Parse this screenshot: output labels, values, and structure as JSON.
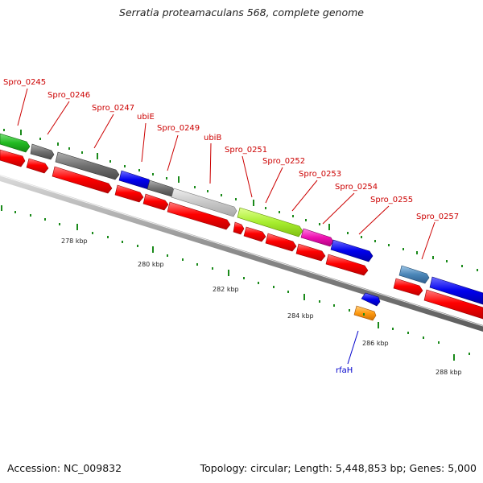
{
  "title": "Serratia proteamaculans 568, complete genome",
  "footer": {
    "accession": "Accession: NC_009832",
    "topology": "Topology: circular; Length: 5,448,853 bp; Genes: 5,000"
  },
  "colors": {
    "forward_default": "#ff0000",
    "reverse_default": "#ff0000",
    "backbone": "#8a8a8a",
    "label_forward": "#cc0000",
    "label_reverse": "#0000cc",
    "tick": "#1a8a1a"
  },
  "scale_labels": [
    "278 kbp",
    "280 kbp",
    "282 kbp",
    "284 kbp",
    "286 kbp",
    "288 kbp"
  ],
  "gene_labels": [
    {
      "text": "Spro_0245",
      "strand": "top"
    },
    {
      "text": "Spro_0246",
      "strand": "top"
    },
    {
      "text": "Spro_0247",
      "strand": "top"
    },
    {
      "text": "ubiE",
      "strand": "top"
    },
    {
      "text": "Spro_0249",
      "strand": "top"
    },
    {
      "text": "ubiB",
      "strand": "top"
    },
    {
      "text": "Spro_0251",
      "strand": "top"
    },
    {
      "text": "Spro_0252",
      "strand": "top"
    },
    {
      "text": "Spro_0253",
      "strand": "top"
    },
    {
      "text": "Spro_0254",
      "strand": "top"
    },
    {
      "text": "Spro_0255",
      "strand": "top"
    },
    {
      "text": "Spro_0257",
      "strand": "top"
    },
    {
      "text": "rfaH",
      "strand": "bottom"
    }
  ]
}
